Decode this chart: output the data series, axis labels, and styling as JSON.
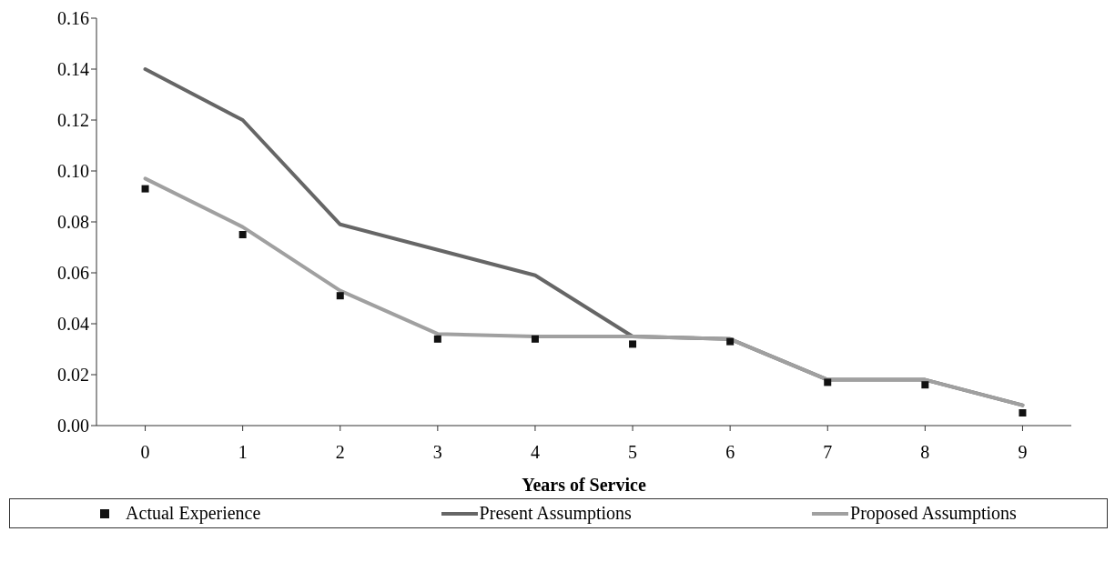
{
  "chart_data": {
    "type": "line",
    "xlabel": "Years of Service",
    "categories": [
      "0",
      "1",
      "2",
      "3",
      "4",
      "5",
      "6",
      "7",
      "8",
      "9"
    ],
    "series": [
      {
        "name": "Actual Experience",
        "type": "scatter",
        "marker": "square",
        "color": "#111111",
        "values": [
          0.093,
          0.075,
          0.051,
          0.034,
          0.034,
          0.032,
          0.033,
          0.017,
          0.016,
          0.005
        ]
      },
      {
        "name": "Present Assumptions",
        "color": "#666666",
        "values": [
          0.14,
          0.12,
          0.079,
          0.069,
          0.059,
          0.035,
          0.034,
          0.018,
          0.018,
          0.008
        ]
      },
      {
        "name": "Proposed Assumptions",
        "color": "#a0a0a0",
        "values": [
          0.097,
          0.078,
          0.053,
          0.036,
          0.035,
          0.035,
          0.034,
          0.018,
          0.018,
          0.008
        ]
      }
    ],
    "ylim": [
      0,
      0.16
    ],
    "yticks": [
      {
        "value": 0,
        "label": "0.00"
      },
      {
        "value": 0.02,
        "label": "0.02"
      },
      {
        "value": 0.04,
        "label": "0.04"
      },
      {
        "value": 0.06,
        "label": "0.06"
      },
      {
        "value": 0.08,
        "label": "0.08"
      },
      {
        "value": 0.1,
        "label": "0.10"
      },
      {
        "value": 0.12,
        "label": "0.12"
      },
      {
        "value": 0.14,
        "label": "0.14"
      },
      {
        "value": 0.16,
        "label": "0.16"
      }
    ],
    "grid": false,
    "legend": "bottom"
  }
}
